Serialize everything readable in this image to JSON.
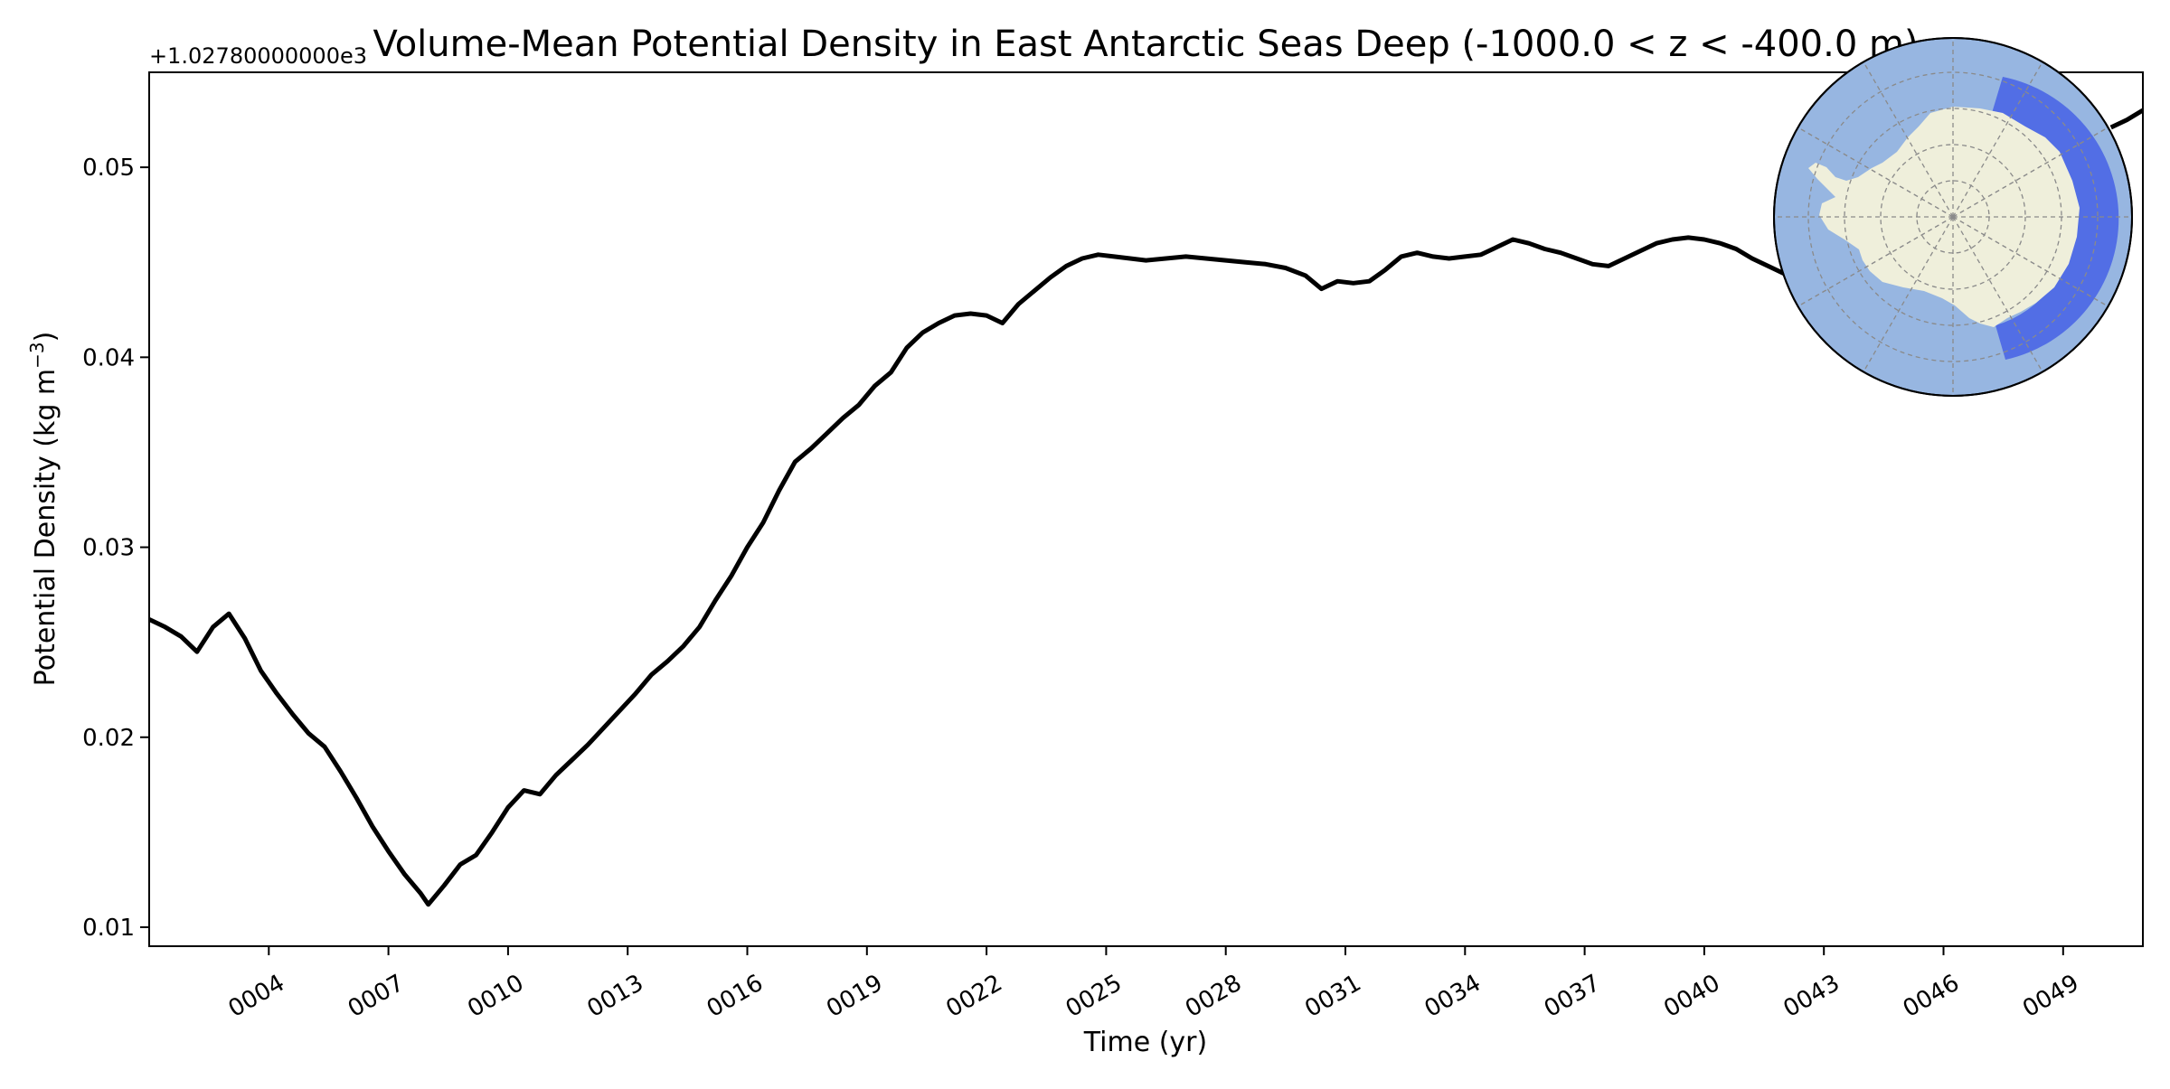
{
  "chart_data": {
    "type": "line",
    "title": "Volume-Mean Potential Density in East Antarctic Seas Deep (-1000.0 < z < -400.0 m)",
    "xlabel": "Time (yr)",
    "ylabel": "Potential Density (kg m⁻³)",
    "offset_label": "+1.02780000000e3",
    "xlim": [
      1,
      51
    ],
    "ylim": [
      0.009,
      0.055
    ],
    "x_ticks": [
      4,
      7,
      10,
      13,
      16,
      19,
      22,
      25,
      28,
      31,
      34,
      37,
      40,
      43,
      46,
      49
    ],
    "x_tick_labels": [
      "0004",
      "0007",
      "0010",
      "0013",
      "0016",
      "0019",
      "0022",
      "0025",
      "0028",
      "0031",
      "0034",
      "0037",
      "0040",
      "0043",
      "0046",
      "0049"
    ],
    "y_ticks": [
      0.01,
      0.02,
      0.03,
      0.04,
      0.05
    ],
    "y_tick_labels": [
      "0.01",
      "0.02",
      "0.03",
      "0.04",
      "0.05"
    ],
    "grid": false,
    "line_color": "#000000",
    "series": [
      {
        "x": [
          1.0,
          1.4,
          1.8,
          2.2,
          2.6,
          3.0,
          3.4,
          3.8,
          4.2,
          4.6,
          5.0,
          5.4,
          5.8,
          6.2,
          6.6,
          7.0,
          7.4,
          7.8,
          8.0,
          8.4,
          8.8,
          9.2,
          9.6,
          10.0,
          10.4,
          10.8,
          11.2,
          11.6,
          12.0,
          12.4,
          12.8,
          13.2,
          13.6,
          14.0,
          14.4,
          14.8,
          15.2,
          15.6,
          16.0,
          16.4,
          16.8,
          17.2,
          17.6,
          18.0,
          18.4,
          18.8,
          19.2,
          19.6,
          20.0,
          20.4,
          20.8,
          21.2,
          21.6,
          22.0,
          22.4,
          22.8,
          23.2,
          23.6,
          24.0,
          24.4,
          24.8,
          25.2,
          25.6,
          26.0,
          26.5,
          27.0,
          27.5,
          28.0,
          28.5,
          29.0,
          29.5,
          30.0,
          30.4,
          30.8,
          31.2,
          31.6,
          32.0,
          32.4,
          32.8,
          33.2,
          33.6,
          34.0,
          34.4,
          34.8,
          35.2,
          35.6,
          36.0,
          36.4,
          36.8,
          37.2,
          37.6,
          38.0,
          38.4,
          38.8,
          39.2,
          39.6,
          40.0,
          40.4,
          40.8,
          41.2,
          41.6,
          42.0,
          42.4
        ],
        "y": [
          0.0262,
          0.0258,
          0.0253,
          0.0245,
          0.0258,
          0.0265,
          0.0252,
          0.0235,
          0.0223,
          0.0212,
          0.0202,
          0.0195,
          0.0182,
          0.0168,
          0.0153,
          0.014,
          0.0128,
          0.0118,
          0.0112,
          0.0122,
          0.0133,
          0.0138,
          0.015,
          0.0163,
          0.0172,
          0.017,
          0.018,
          0.0188,
          0.0196,
          0.0205,
          0.0214,
          0.0223,
          0.0233,
          0.024,
          0.0248,
          0.0258,
          0.0272,
          0.0285,
          0.03,
          0.0313,
          0.033,
          0.0345,
          0.0352,
          0.036,
          0.0368,
          0.0375,
          0.0385,
          0.0392,
          0.0405,
          0.0413,
          0.0418,
          0.0422,
          0.0423,
          0.0422,
          0.0418,
          0.0428,
          0.0435,
          0.0442,
          0.0448,
          0.0452,
          0.0454,
          0.0453,
          0.0452,
          0.0451,
          0.0452,
          0.0453,
          0.0452,
          0.0451,
          0.045,
          0.0449,
          0.0447,
          0.0443,
          0.0436,
          0.044,
          0.0439,
          0.044,
          0.0446,
          0.0453,
          0.0455,
          0.0453,
          0.0452,
          0.0453,
          0.0454,
          0.0458,
          0.0462,
          0.046,
          0.0457,
          0.0455,
          0.0452,
          0.0449,
          0.0448,
          0.0452,
          0.0456,
          0.046,
          0.0462,
          0.0463,
          0.0462,
          0.046,
          0.0457,
          0.0452,
          0.0448,
          0.0444,
          0.044
        ]
      },
      {
        "x": [
          50.2,
          50.6,
          51.0
        ],
        "y": [
          0.0521,
          0.0525,
          0.053
        ]
      }
    ]
  },
  "inset_map": {
    "ocean_color": "#97b6e1",
    "land_color": "#efefdb",
    "region_color": "#3b55e6",
    "gridline_color": "#8a8a8a"
  }
}
